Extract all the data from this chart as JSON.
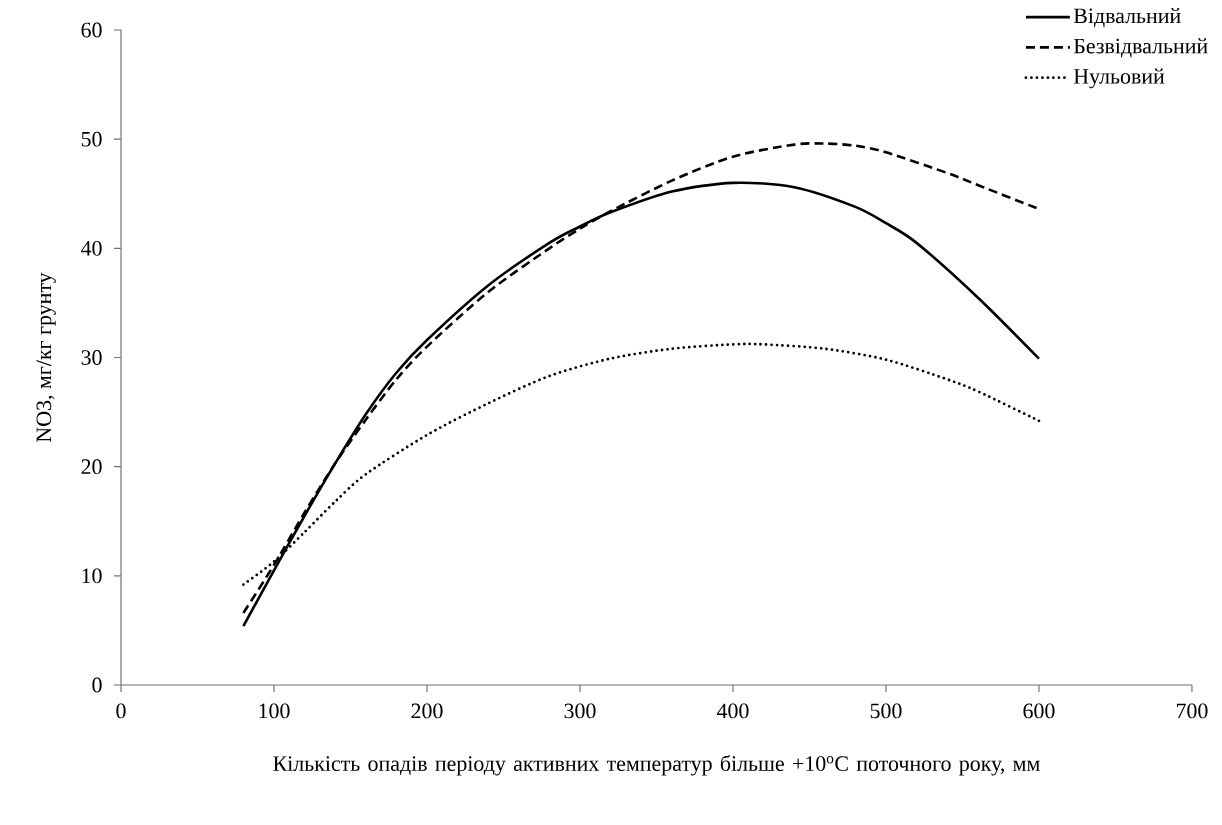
{
  "chart_data": {
    "type": "line",
    "xlabel": "Кількість опадів періоду активних температур більше +10$^{o}$С поточного року, мм",
    "ylabel": "NO3, мг/кг грунту",
    "xlim": [
      0,
      700
    ],
    "xticks": [
      0,
      100,
      200,
      300,
      400,
      500,
      600,
      700
    ],
    "ylim": [
      0,
      60
    ],
    "yticks": [
      0,
      10,
      20,
      30,
      40,
      50,
      60
    ],
    "legend": "top right",
    "marker": "none",
    "grid": false,
    "series": [
      {
        "name": "Відвальний",
        "color": "#000000",
        "line_style": "solid",
        "x": [
          80,
          100,
          120,
          140,
          160,
          180,
          200,
          240,
          280,
          300,
          320,
          360,
          400,
          440,
          480,
          500,
          520,
          560,
          600
        ],
        "values": [
          5.4,
          10.5,
          15.5,
          20.3,
          24.8,
          28.6,
          31.6,
          36.6,
          40.5,
          42.0,
          43.3,
          45.2,
          46.0,
          45.6,
          43.8,
          42.3,
          40.5,
          35.5,
          29.9
        ]
      },
      {
        "name": "Безвідвальний",
        "color": "#000000",
        "line_style": "dashed",
        "x": [
          80,
          100,
          120,
          140,
          160,
          180,
          200,
          240,
          280,
          300,
          320,
          360,
          400,
          440,
          460,
          480,
          500,
          540,
          560,
          600
        ],
        "values": [
          6.6,
          11.0,
          15.8,
          20.3,
          24.3,
          28.0,
          31.0,
          36.0,
          40.0,
          41.8,
          43.4,
          46.2,
          48.4,
          49.5,
          49.6,
          49.4,
          48.8,
          46.9,
          45.8,
          43.6
        ]
      },
      {
        "name": "Нульовий",
        "color": "#000000",
        "line_style": "dotted",
        "x": [
          80,
          100,
          120,
          140,
          160,
          200,
          240,
          280,
          320,
          360,
          400,
          420,
          460,
          500,
          540,
          560,
          600
        ],
        "values": [
          9.2,
          11.3,
          14.0,
          16.8,
          19.3,
          22.9,
          25.8,
          28.3,
          29.9,
          30.8,
          31.2,
          31.2,
          30.8,
          29.8,
          28.0,
          26.9,
          24.2
        ]
      }
    ]
  }
}
